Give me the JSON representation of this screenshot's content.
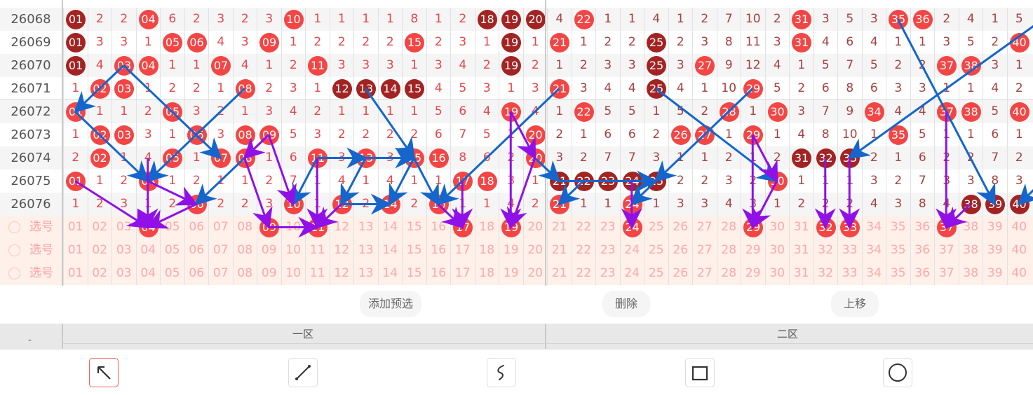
{
  "colors": {
    "ball": "#f44545",
    "ball_repeat": "#a32323",
    "arrow_blue": "#1466cc",
    "arrow_purple": "#9010e8",
    "active_tool": "#f06060"
  },
  "rows": [
    {
      "issue": "26068",
      "cells": [
        "01",
        "2",
        "2",
        "04",
        "6",
        "2",
        "3",
        "2",
        "3",
        "10",
        "1",
        "1",
        "1",
        "1",
        "8",
        "1",
        "2",
        "18",
        "19",
        "20",
        "4",
        "22",
        "1",
        "1",
        "4",
        "1",
        "2",
        "7",
        "10",
        "2",
        "31",
        "3",
        "5",
        "3",
        "35",
        "36",
        "2",
        "4",
        "1",
        "5"
      ],
      "dark": [
        1,
        18,
        19,
        20
      ]
    },
    {
      "issue": "26069",
      "cells": [
        "01",
        "3",
        "3",
        "1",
        "05",
        "06",
        "4",
        "3",
        "09",
        "1",
        "2",
        "2",
        "2",
        "2",
        "15",
        "2",
        "3",
        "1",
        "19",
        "1",
        "21",
        "1",
        "2",
        "2",
        "25",
        "2",
        "3",
        "8",
        "11",
        "3",
        "31",
        "4",
        "6",
        "4",
        "1",
        "1",
        "3",
        "5",
        "2",
        "40"
      ],
      "dark": [
        1,
        19,
        25
      ]
    },
    {
      "issue": "26070",
      "cells": [
        "01",
        "4",
        "03",
        "04",
        "1",
        "1",
        "07",
        "4",
        "1",
        "2",
        "11",
        "3",
        "3",
        "3",
        "1",
        "3",
        "4",
        "2",
        "19",
        "2",
        "1",
        "2",
        "3",
        "3",
        "25",
        "3",
        "27",
        "9",
        "12",
        "4",
        "1",
        "5",
        "7",
        "5",
        "2",
        "2",
        "37",
        "38",
        "3",
        "1"
      ],
      "dark": [
        1,
        19,
        25
      ]
    },
    {
      "issue": "26071",
      "cells": [
        "1",
        "02",
        "03",
        "1",
        "2",
        "2",
        "1",
        "08",
        "2",
        "3",
        "1",
        "12",
        "13",
        "14",
        "15",
        "4",
        "5",
        "3",
        "1",
        "3",
        "21",
        "3",
        "4",
        "4",
        "25",
        "4",
        "1",
        "10",
        "29",
        "5",
        "2",
        "6",
        "8",
        "6",
        "3",
        "3",
        "1",
        "1",
        "4",
        "2"
      ],
      "dark": [
        12,
        13,
        14,
        15,
        25
      ]
    },
    {
      "issue": "26072",
      "cells": [
        "01",
        "1",
        "1",
        "2",
        "05",
        "3",
        "2",
        "1",
        "3",
        "4",
        "2",
        "1",
        "1",
        "1",
        "1",
        "5",
        "6",
        "4",
        "19",
        "4",
        "1",
        "22",
        "5",
        "5",
        "1",
        "5",
        "2",
        "28",
        "1",
        "30",
        "3",
        "7",
        "9",
        "34",
        "4",
        "4",
        "37",
        "38",
        "5",
        "40"
      ],
      "dark": []
    },
    {
      "issue": "26073",
      "cells": [
        "1",
        "02",
        "03",
        "3",
        "1",
        "06",
        "3",
        "08",
        "09",
        "5",
        "3",
        "2",
        "2",
        "2",
        "2",
        "6",
        "7",
        "5",
        "1",
        "20",
        "2",
        "1",
        "6",
        "6",
        "2",
        "26",
        "27",
        "1",
        "29",
        "1",
        "4",
        "8",
        "10",
        "1",
        "35",
        "5",
        "1",
        "1",
        "6",
        "1"
      ],
      "dark": []
    },
    {
      "issue": "26074",
      "cells": [
        "2",
        "02",
        "1",
        "4",
        "05",
        "1",
        "07",
        "08",
        "1",
        "6",
        "11",
        "3",
        "13",
        "3",
        "15",
        "16",
        "8",
        "6",
        "2",
        "20",
        "3",
        "2",
        "7",
        "7",
        "3",
        "1",
        "1",
        "2",
        "1",
        "2",
        "31",
        "32",
        "33",
        "2",
        "1",
        "6",
        "2",
        "2",
        "7",
        "2"
      ],
      "dark": [
        31,
        32,
        33
      ]
    },
    {
      "issue": "26075",
      "cells": [
        "01",
        "1",
        "2",
        "04",
        "1",
        "2",
        "1",
        "1",
        "2",
        "7",
        "1",
        "4",
        "1",
        "4",
        "1",
        "1",
        "17",
        "18",
        "3",
        "1",
        "21",
        "22",
        "23",
        "24",
        "25",
        "2",
        "2",
        "3",
        "2",
        "30",
        "1",
        "1",
        "1",
        "3",
        "2",
        "7",
        "3",
        "3",
        "8",
        "3"
      ],
      "dark": [
        21,
        22,
        23,
        24,
        25
      ]
    },
    {
      "issue": "26076",
      "cells": [
        "1",
        "2",
        "3",
        "1",
        "2",
        "06",
        "2",
        "2",
        "3",
        "10",
        "1",
        "12",
        "2",
        "14",
        "2",
        "16",
        "1",
        "1",
        "4",
        "2",
        "21",
        "1",
        "1",
        "24",
        "1",
        "3",
        "3",
        "4",
        "3",
        "1",
        "2",
        "2",
        "2",
        "4",
        "3",
        "8",
        "4",
        "38",
        "39",
        "40"
      ],
      "dark": [
        38,
        39,
        40
      ]
    }
  ],
  "selection_rows": [
    {
      "label": "选号",
      "selected": [
        4,
        9,
        11,
        17,
        19,
        24,
        29,
        32,
        33,
        37
      ]
    },
    {
      "label": "选号",
      "selected": []
    },
    {
      "label": "选号",
      "selected": []
    }
  ],
  "arrows": [
    {
      "color": "blue",
      "from": [
        "26070",
        3
      ],
      "to": [
        "26072",
        1
      ]
    },
    {
      "color": "blue",
      "from": [
        "26070",
        3
      ],
      "to": [
        "26074",
        7
      ]
    },
    {
      "color": "blue",
      "from": [
        "26071",
        8
      ],
      "to": [
        "26075",
        4
      ]
    },
    {
      "color": "blue",
      "from": [
        "26072",
        1
      ],
      "to": [
        "26075",
        4
      ]
    },
    {
      "color": "blue",
      "from": [
        "26073",
        9
      ],
      "to": [
        "26076",
        6
      ]
    },
    {
      "color": "blue",
      "from": [
        "26074",
        11
      ],
      "to": [
        "26076",
        10
      ]
    },
    {
      "color": "blue",
      "from": [
        "26074",
        11
      ],
      "to": [
        "26074",
        13
      ]
    },
    {
      "color": "blue",
      "from": [
        "26074",
        13
      ],
      "to": [
        "26074",
        15
      ]
    },
    {
      "color": "blue",
      "from": [
        "26074",
        13
      ],
      "to": [
        "26076",
        12
      ]
    },
    {
      "color": "blue",
      "from": [
        "26074",
        15
      ],
      "to": [
        "26076",
        14
      ]
    },
    {
      "color": "blue",
      "from": [
        "26076",
        12
      ],
      "to": [
        "26076",
        14
      ]
    },
    {
      "color": "blue",
      "from": [
        "26071",
        13
      ],
      "to": [
        "26074",
        15
      ]
    },
    {
      "color": "blue",
      "from": [
        "26074",
        15
      ],
      "to": [
        "26076",
        16
      ]
    },
    {
      "color": "blue",
      "from": [
        "26071",
        21
      ],
      "to": [
        "26076",
        16
      ]
    },
    {
      "color": "blue",
      "from": [
        "26074",
        20
      ],
      "to": [
        "26075",
        21
      ]
    },
    {
      "color": "blue",
      "from": [
        "26075",
        21
      ],
      "to": [
        "26075",
        25
      ]
    },
    {
      "color": "blue",
      "from": [
        "26075",
        22
      ],
      "to": [
        "26076",
        21
      ]
    },
    {
      "color": "blue",
      "from": [
        "26075",
        25
      ],
      "to": [
        "26076",
        24
      ]
    },
    {
      "color": "blue",
      "from": [
        "26071",
        29
      ],
      "to": [
        "26075",
        25
      ]
    },
    {
      "color": "blue",
      "from": [
        "26071",
        25
      ],
      "to": [
        "26075",
        30
      ]
    },
    {
      "color": "blue",
      "from": [
        "26068",
        41
      ],
      "to": [
        "26074",
        33
      ]
    },
    {
      "color": "blue",
      "from": [
        "26068",
        35
      ],
      "to": [
        "26076",
        39
      ]
    },
    {
      "color": "blue",
      "from": [
        "26075",
        41
      ],
      "to": [
        "26076",
        40
      ]
    },
    {
      "color": "purple",
      "from": [
        "26075",
        1
      ],
      "to": [
        "sel",
        4
      ]
    },
    {
      "color": "purple",
      "from": [
        "26074",
        4
      ],
      "to": [
        "sel",
        4
      ]
    },
    {
      "color": "purple",
      "from": [
        "26075",
        4
      ],
      "to": [
        "26076",
        6
      ]
    },
    {
      "color": "purple",
      "from": [
        "26076",
        6
      ],
      "to": [
        "sel",
        4
      ]
    },
    {
      "color": "purple",
      "from": [
        "26073",
        9
      ],
      "to": [
        "26074",
        8
      ]
    },
    {
      "color": "purple",
      "from": [
        "26073",
        9
      ],
      "to": [
        "26076",
        10
      ]
    },
    {
      "color": "purple",
      "from": [
        "26074",
        8
      ],
      "to": [
        "sel",
        9
      ]
    },
    {
      "color": "purple",
      "from": [
        "sel",
        9
      ],
      "to": [
        "sel",
        11
      ]
    },
    {
      "color": "purple",
      "from": [
        "26074",
        11
      ],
      "to": [
        "sel",
        11
      ]
    },
    {
      "color": "purple",
      "from": [
        "26076",
        12
      ],
      "to": [
        "sel",
        11
      ]
    },
    {
      "color": "purple",
      "from": [
        "26075",
        17
      ],
      "to": [
        "sel",
        17
      ]
    },
    {
      "color": "purple",
      "from": [
        "26076",
        16
      ],
      "to": [
        "sel",
        17
      ]
    },
    {
      "color": "purple",
      "from": [
        "26072",
        19
      ],
      "to": [
        "sel",
        19
      ]
    },
    {
      "color": "purple",
      "from": [
        "26072",
        19
      ],
      "to": [
        "26074",
        20
      ]
    },
    {
      "color": "purple",
      "from": [
        "26074",
        20
      ],
      "to": [
        "sel",
        19
      ]
    },
    {
      "color": "purple",
      "from": [
        "26075",
        24
      ],
      "to": [
        "sel",
        24
      ]
    },
    {
      "color": "purple",
      "from": [
        "26073",
        29
      ],
      "to": [
        "sel",
        29
      ]
    },
    {
      "color": "purple",
      "from": [
        "26073",
        29
      ],
      "to": [
        "26075",
        30
      ]
    },
    {
      "color": "purple",
      "from": [
        "26075",
        30
      ],
      "to": [
        "sel",
        29
      ]
    },
    {
      "color": "purple",
      "from": [
        "26074",
        32
      ],
      "to": [
        "sel",
        32
      ]
    },
    {
      "color": "purple",
      "from": [
        "26074",
        33
      ],
      "to": [
        "sel",
        33
      ]
    },
    {
      "color": "purple",
      "from": [
        "26072",
        37
      ],
      "to": [
        "sel",
        37
      ]
    },
    {
      "color": "purple",
      "from": [
        "26076",
        38
      ],
      "to": [
        "sel",
        37
      ]
    }
  ],
  "buttons": {
    "add": "添加预选",
    "delete": "删除",
    "move_up": "上移"
  },
  "header": {
    "left": "-",
    "zone1": "一区",
    "zone2": "二区"
  },
  "tools": [
    {
      "name": "arrow-tool",
      "icon": "arrow-up-left-icon",
      "active": true
    },
    {
      "name": "line-tool",
      "icon": "line-icon",
      "active": false
    },
    {
      "name": "freehand-tool",
      "icon": "freehand-icon",
      "active": false
    },
    {
      "name": "rectangle-tool",
      "icon": "square-icon",
      "active": false
    },
    {
      "name": "circle-tool",
      "icon": "circle-icon",
      "active": false
    }
  ]
}
